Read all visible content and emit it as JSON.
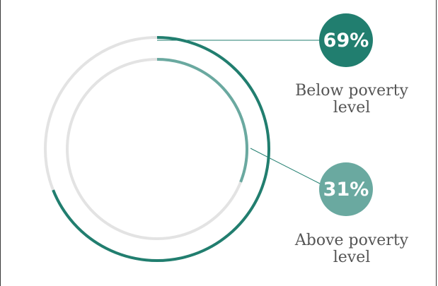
{
  "colors": {
    "below": "#217e6f",
    "above": "#6aa9a0",
    "track": "#e3e3e3",
    "label_text": "#555555"
  },
  "chart_data": {
    "type": "pie",
    "style": "concentric-rings",
    "series": [
      {
        "label_line1": "Below poverty",
        "label_line2": "level",
        "value": 69,
        "value_label": "69%"
      },
      {
        "label_line1": "Above poverty",
        "label_line2": "level",
        "value": 31,
        "value_label": "31%"
      }
    ]
  }
}
